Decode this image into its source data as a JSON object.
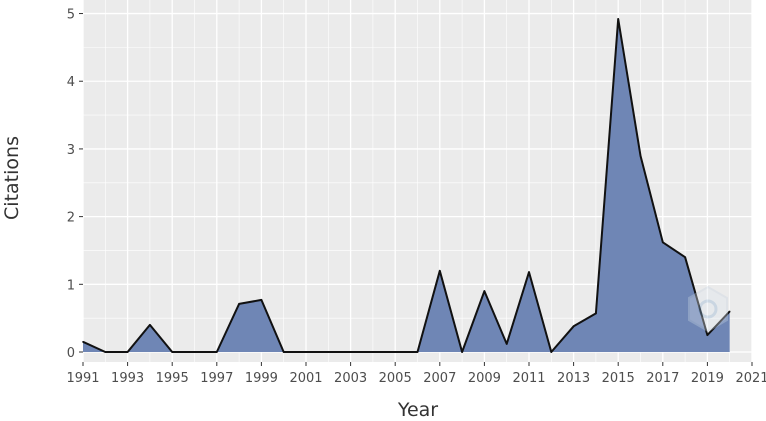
{
  "chart_data": {
    "type": "area",
    "title": "",
    "xlabel": "Year",
    "ylabel": "Citations",
    "x": [
      1991,
      1992,
      1993,
      1994,
      1995,
      1996,
      1997,
      1998,
      1999,
      2000,
      2001,
      2002,
      2003,
      2004,
      2005,
      2006,
      2007,
      2008,
      2009,
      2010,
      2011,
      2012,
      2013,
      2014,
      2015,
      2016,
      2017,
      2018,
      2019,
      2020
    ],
    "values": [
      0.15,
      0,
      0,
      0.4,
      0,
      0,
      0,
      0.71,
      0.77,
      0,
      0,
      0,
      0,
      0,
      0,
      0,
      1.2,
      0,
      0.9,
      0.12,
      1.18,
      0,
      0.38,
      0.57,
      4.92,
      2.9,
      1.62,
      1.4,
      0.25,
      0.6
    ],
    "xlim": [
      1991,
      2021
    ],
    "ylim": [
      0,
      5
    ],
    "xticks": [
      "1991",
      "1993",
      "1995",
      "1997",
      "1999",
      "2001",
      "2003",
      "2005",
      "2007",
      "2009",
      "2011",
      "2013",
      "2015",
      "2017",
      "2019",
      "2021"
    ],
    "yticks": [
      "0",
      "1",
      "2",
      "3",
      "4",
      "5"
    ],
    "grid": true,
    "colors": {
      "fill": "#6f86b5",
      "line": "#111111",
      "panel": "#ebebeb",
      "grid": "#ffffff"
    },
    "watermark_icon": "hexagon-logo-icon"
  }
}
